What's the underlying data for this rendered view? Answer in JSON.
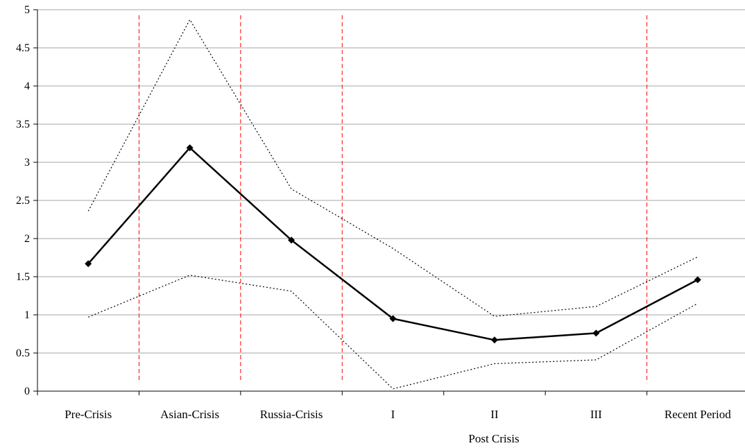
{
  "chart_data": {
    "type": "line",
    "categories": [
      "Pre-Crisis",
      "Asian-Crisis",
      "Russia-Crisis",
      "I",
      "II",
      "III",
      "Recent Period"
    ],
    "group_label": "Post Crisis",
    "group_categories": [
      "I",
      "II",
      "III"
    ],
    "ylim": [
      0,
      5
    ],
    "yticks": [
      "0",
      "0.5",
      "1",
      "1.5",
      "2",
      "2.5",
      "3",
      "3.5",
      "4",
      "4.5",
      "5"
    ],
    "grid": true,
    "series": [
      {
        "values": [
          1.67,
          3.19,
          1.98,
          0.95,
          0.67,
          0.76,
          1.46
        ],
        "style": "solid",
        "marker": "diamond",
        "color": "#000000"
      },
      {
        "values": [
          2.36,
          4.87,
          2.65,
          1.87,
          0.98,
          1.11,
          1.76
        ],
        "style": "dotted",
        "color": "#000000"
      },
      {
        "values": [
          0.97,
          1.52,
          1.31,
          0.03,
          0.36,
          0.41,
          1.15
        ],
        "style": "dotted",
        "color": "#000000"
      }
    ],
    "separators_after_categories": [
      "Pre-Crisis",
      "Asian-Crisis",
      "Russia-Crisis",
      "III"
    ],
    "separator_color": "#ff0000"
  }
}
